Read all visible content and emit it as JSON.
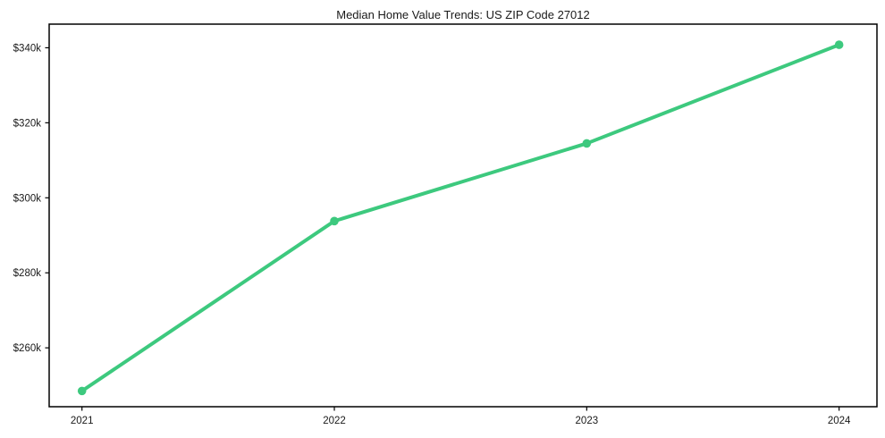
{
  "title": "Median Home Value Trends: US ZIP Code 27012",
  "chart_data": {
    "type": "line",
    "title": "Median Home Value Trends: US ZIP Code 27012",
    "xlabel": "",
    "ylabel": "",
    "series": [
      {
        "name": "Median home value",
        "x": [
          2021,
          2022,
          2023,
          2024
        ],
        "values": [
          248500,
          293800,
          314500,
          340800
        ]
      }
    ],
    "x_tick_labels": [
      "2021",
      "2022",
      "2023",
      "2024"
    ],
    "x_tick_values": [
      2021,
      2022,
      2023,
      2024
    ],
    "y_tick_labels": [
      "$260k",
      "$280k",
      "$300k",
      "$320k",
      "$340k"
    ],
    "y_tick_values": [
      260000,
      280000,
      300000,
      320000,
      340000
    ],
    "xlim": [
      2020.87,
      2024.15
    ],
    "ylim": [
      244300,
      346300
    ],
    "grid": false,
    "legend_position": "none",
    "line_color": "#3dc97e",
    "marker": "circle",
    "marker_color": "#3dc97e",
    "axis_color": "#000000",
    "tick_label_color": "#1a1a1a",
    "background": "#ffffff"
  }
}
